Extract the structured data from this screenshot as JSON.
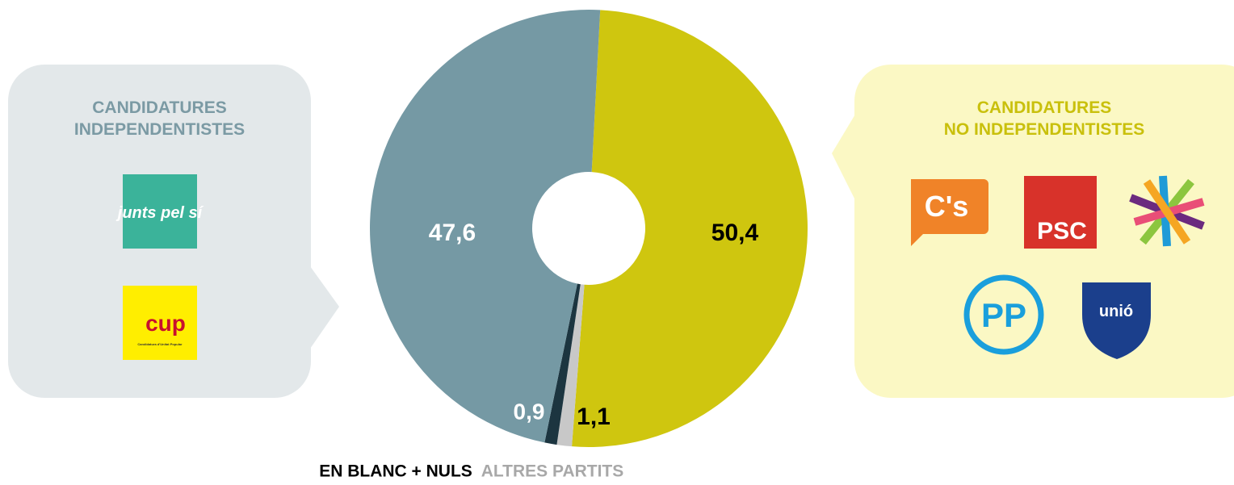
{
  "chart_data": {
    "type": "pie",
    "categories": [
      "CANDIDATURES NO INDEPENDENTISTES",
      "ALTRES PARTITS",
      "EN BLANC + NULS",
      "CANDIDATURES INDEPENDENTISTES"
    ],
    "values": [
      50.4,
      1.1,
      0.9,
      47.6
    ],
    "value_labels": [
      "50,4",
      "1,1",
      "0,9",
      "47,6"
    ],
    "colors": [
      "#cfc60f",
      "#c8c8c8",
      "#1c3540",
      "#7599a4"
    ],
    "label_colors": [
      "#000000",
      "#000000",
      "#ffffff",
      "#ffffff"
    ],
    "legend_colors": [
      "#000000",
      "#a8a8a8"
    ]
  },
  "logos": {
    "independentistes": [
      "junts pel sí",
      "cup",
      "Candidatura d'Unitat Popular"
    ],
    "no_independentistes": [
      "C's",
      "PSC",
      "PP",
      "unió"
    ]
  }
}
